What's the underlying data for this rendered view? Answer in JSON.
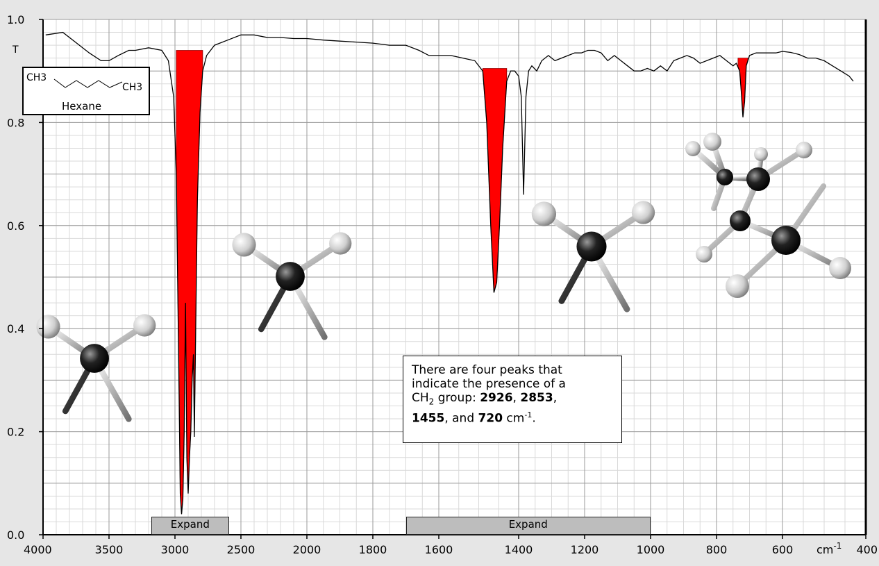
{
  "chart_data": {
    "type": "line",
    "ylabel": "T",
    "xunit_label": "cm",
    "xunit_sup": "-1",
    "xlim": [
      4000,
      400
    ],
    "ylim": [
      0.0,
      1.0
    ],
    "x_ticks": [
      4000,
      3500,
      3000,
      2500,
      2000,
      1800,
      1600,
      1400,
      1200,
      1000,
      800,
      600,
      400
    ],
    "x_tick_labels": [
      "4000",
      "3500",
      "3000",
      "2500",
      "2000",
      "1800",
      "1600",
      "1400",
      "1200",
      "1000",
      "800",
      "600",
      "400"
    ],
    "y_ticks": [
      0.0,
      0.2,
      0.4,
      0.6,
      0.8,
      1.0
    ],
    "y_tick_labels": [
      "0.0",
      "0.2",
      "0.4",
      "0.6",
      "0.8",
      "1.0"
    ],
    "grid": true,
    "series": [
      {
        "x": [
          3980,
          3850,
          3750,
          3650,
          3560,
          3500,
          3430,
          3350,
          3300,
          3200,
          3100,
          3050,
          3010,
          2990,
          2970,
          2960,
          2950,
          2940,
          2930,
          2920,
          2910,
          2900,
          2890,
          2880,
          2870,
          2860,
          2853,
          2845,
          2830,
          2810,
          2790,
          2760,
          2700,
          2600,
          2500,
          2400,
          2300,
          2200,
          2100,
          2000,
          1950,
          1900,
          1850,
          1800,
          1750,
          1700,
          1660,
          1630,
          1600,
          1570,
          1540,
          1510,
          1490,
          1480,
          1470,
          1462,
          1455,
          1448,
          1440,
          1430,
          1420,
          1410,
          1400,
          1392,
          1385,
          1378,
          1370,
          1360,
          1345,
          1330,
          1310,
          1290,
          1270,
          1250,
          1230,
          1210,
          1190,
          1170,
          1150,
          1130,
          1110,
          1090,
          1070,
          1050,
          1030,
          1010,
          990,
          970,
          950,
          930,
          910,
          890,
          870,
          850,
          830,
          810,
          790,
          770,
          750,
          740,
          730,
          725,
          720,
          715,
          710,
          700,
          680,
          660,
          640,
          620,
          600,
          580,
          560,
          540,
          520,
          500,
          480,
          460,
          440,
          430
        ],
        "y": [
          0.97,
          0.975,
          0.955,
          0.935,
          0.92,
          0.92,
          0.93,
          0.94,
          0.94,
          0.945,
          0.94,
          0.92,
          0.85,
          0.7,
          0.3,
          0.08,
          0.04,
          0.07,
          0.2,
          0.45,
          0.15,
          0.08,
          0.15,
          0.2,
          0.3,
          0.35,
          0.19,
          0.35,
          0.65,
          0.82,
          0.9,
          0.93,
          0.95,
          0.96,
          0.97,
          0.97,
          0.965,
          0.965,
          0.963,
          0.963,
          0.96,
          0.958,
          0.956,
          0.954,
          0.95,
          0.95,
          0.94,
          0.93,
          0.93,
          0.93,
          0.925,
          0.92,
          0.9,
          0.8,
          0.6,
          0.47,
          0.49,
          0.6,
          0.75,
          0.88,
          0.9,
          0.9,
          0.89,
          0.85,
          0.66,
          0.85,
          0.9,
          0.91,
          0.9,
          0.92,
          0.93,
          0.92,
          0.925,
          0.93,
          0.935,
          0.935,
          0.94,
          0.94,
          0.935,
          0.92,
          0.93,
          0.92,
          0.91,
          0.9,
          0.9,
          0.905,
          0.9,
          0.91,
          0.9,
          0.92,
          0.925,
          0.93,
          0.925,
          0.915,
          0.92,
          0.925,
          0.93,
          0.92,
          0.91,
          0.915,
          0.9,
          0.86,
          0.81,
          0.84,
          0.91,
          0.93,
          0.935,
          0.935,
          0.935,
          0.935,
          0.938,
          0.936,
          0.932,
          0.925,
          0.925,
          0.92,
          0.91,
          0.9,
          0.89,
          0.88
        ]
      }
    ],
    "highlighted_peaks": [
      {
        "from": 2990,
        "to": 2790,
        "baseline": 0.94
      },
      {
        "from": 1490,
        "to": 1430,
        "baseline": 0.905
      },
      {
        "from": 735,
        "to": 705,
        "baseline": 0.925
      }
    ],
    "highlight_color": "#ff0000",
    "line_color": "#000000",
    "expand_buttons": [
      {
        "label": "Expand",
        "from": 3180,
        "to": 2590
      },
      {
        "label": "Expand",
        "from": 1700,
        "to": 1000
      }
    ],
    "legend": {
      "ch3_left": "CH3",
      "ch3_right": "CH3",
      "name": "Hexane"
    },
    "annotation": {
      "line1": "There  are four peaks that",
      "line2": "indicate the presence of a",
      "line3a": "CH",
      "line3sub": "2",
      "line3b": " group: ",
      "p1": "2926",
      "sep1": ",  ",
      "p2": "2853",
      "sep2": ",",
      "p3": "1455",
      "sep3": ", and ",
      "p4": "720",
      "unit": " cm",
      "unit_sup": "-1",
      "end": "."
    },
    "molecules": [
      {
        "name": "ch2-model-1"
      },
      {
        "name": "ch2-model-2"
      },
      {
        "name": "ch2-model-3"
      },
      {
        "name": "ch2-rocking-model"
      }
    ]
  }
}
